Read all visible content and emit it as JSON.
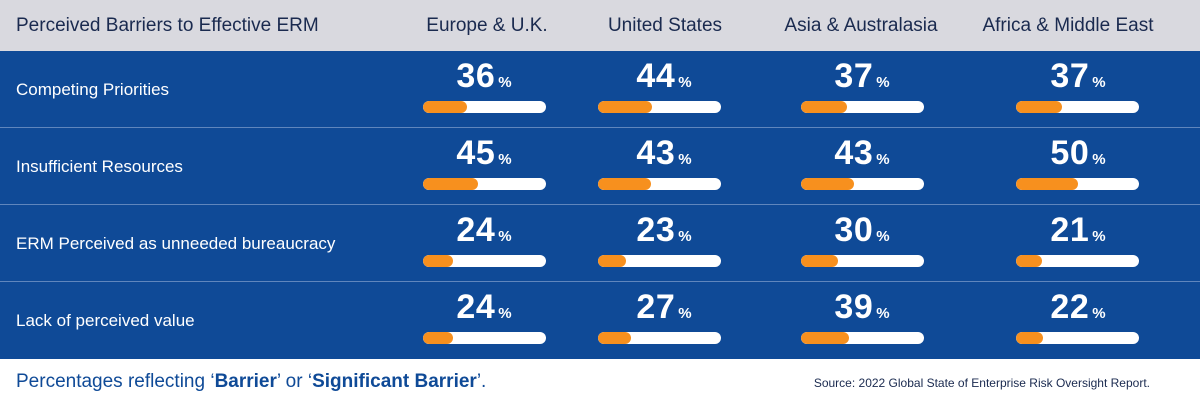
{
  "header": {
    "title": "Perceived Barriers to Effective ERM",
    "columns": [
      "Europe & U.K.",
      "United States",
      "Asia & Australasia",
      "Africa & Middle East"
    ]
  },
  "chart_data": {
    "type": "table",
    "title": "Perceived Barriers to Effective ERM",
    "unit": "%",
    "categories": [
      "Europe & U.K.",
      "United States",
      "Asia & Australasia",
      "Africa & Middle East"
    ],
    "series": [
      {
        "name": "Competing Priorities",
        "values": [
          36,
          44,
          37,
          37
        ]
      },
      {
        "name": "Insufficient Resources",
        "values": [
          45,
          43,
          43,
          50
        ]
      },
      {
        "name": "ERM Perceived as unneeded bureaucracy",
        "values": [
          24,
          23,
          30,
          21
        ]
      },
      {
        "name": "Lack of perceived value",
        "values": [
          24,
          27,
          39,
          22
        ]
      }
    ],
    "bar_max": 100
  },
  "footer": {
    "note_prefix": "Percentages reflecting ‘",
    "note_term1": "Barrier",
    "note_mid": "’ or ‘",
    "note_term2": "Significant Barrier",
    "note_suffix": "’.",
    "source": "Source: 2022 Global State of Enterprise Risk Oversight Report."
  },
  "colors": {
    "header_bg": "#d9d9df",
    "body_bg": "#0f4a97",
    "bar_fill": "#f7901e",
    "bar_track": "#ffffff"
  }
}
